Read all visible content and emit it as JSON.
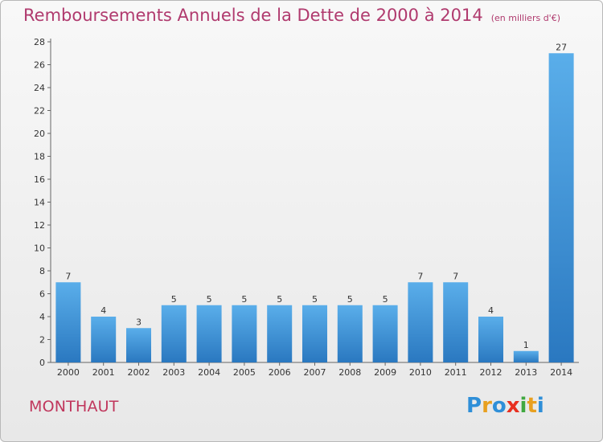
{
  "header": {
    "title": "Remboursements Annuels de la Dette de 2000 à 2014",
    "unit": "(en milliers d'€)"
  },
  "footer": {
    "commune": "MONTHAUT",
    "logo_text": "Proxiti",
    "logo_colors": [
      "#2f8fd8",
      "#e8a020",
      "#2f8fd8",
      "#e83020",
      "#40a840",
      "#e8a020",
      "#2f8fd8"
    ]
  },
  "chart_data": {
    "type": "bar",
    "categories": [
      "2000",
      "2001",
      "2002",
      "2003",
      "2004",
      "2005",
      "2006",
      "2007",
      "2008",
      "2009",
      "2010",
      "2011",
      "2012",
      "2013",
      "2014"
    ],
    "values": [
      7,
      4,
      3,
      5,
      5,
      5,
      5,
      5,
      5,
      5,
      7,
      7,
      4,
      1,
      27
    ],
    "data_labels": [
      "7",
      "4",
      "3",
      "5",
      "5",
      "5",
      "5",
      "5",
      "5",
      "5",
      "7",
      "7",
      "4",
      "1",
      "27"
    ],
    "ylim": [
      0,
      28
    ],
    "yticks": [
      "0",
      "2",
      "4",
      "6",
      "8",
      "10",
      "12",
      "14",
      "16",
      "18",
      "20",
      "22",
      "24",
      "26",
      "28"
    ],
    "grid": false,
    "bar_color": "#3c8fd8",
    "title": "Remboursements Annuels de la Dette de 2000 à 2014",
    "xlabel": "",
    "ylabel": ""
  }
}
